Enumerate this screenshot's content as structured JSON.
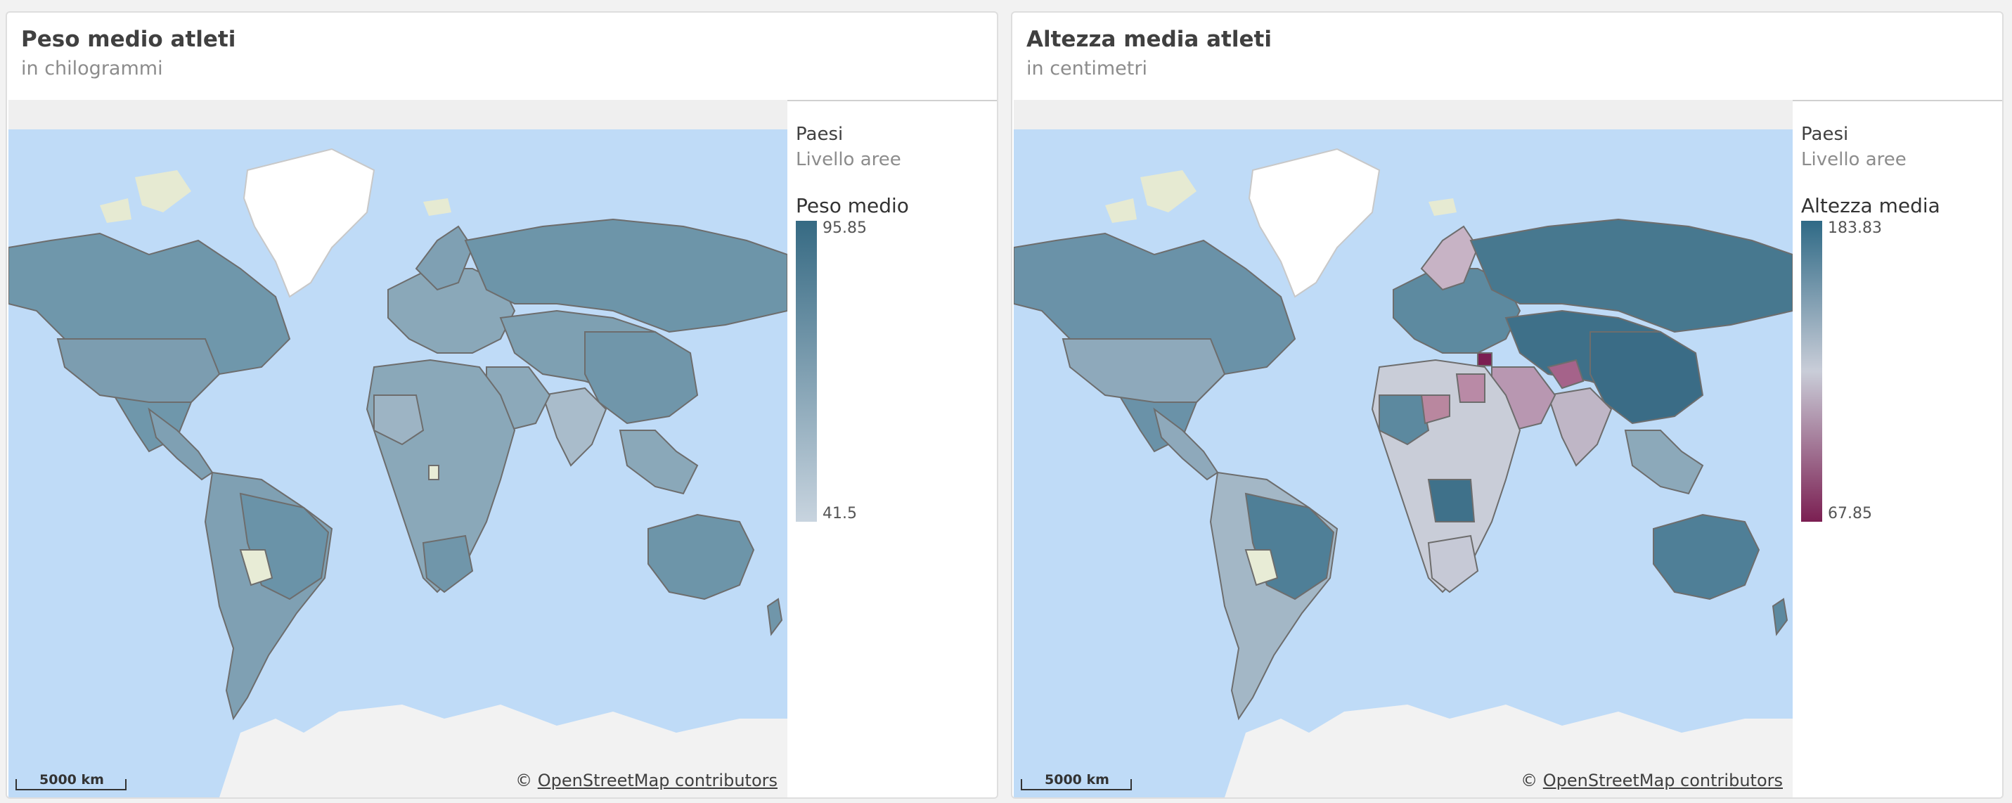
{
  "panels": [
    {
      "title": "Peso medio atleti",
      "subtitle": "in chilogrammi",
      "legend": {
        "dimension_title": "Paesi",
        "dimension_subtitle": "Livello aree",
        "measure_title": "Peso medio",
        "max_label": "95.85",
        "min_label": "41.5",
        "color_scale": [
          "#c8d4df",
          "#366a83"
        ]
      },
      "scale_label": "5000 km",
      "attribution": {
        "prefix": "©",
        "link_text": "OpenStreetMap contributors"
      }
    },
    {
      "title": "Altezza media atleti",
      "subtitle": "in centimetri",
      "legend": {
        "dimension_title": "Paesi",
        "dimension_subtitle": "Livello aree",
        "measure_title": "Altezza media",
        "max_label": "183.83",
        "min_label": "67.85",
        "color_scale": [
          "#7b1f52",
          "#c9cdd8",
          "#2f6a86"
        ]
      },
      "scale_label": "5000 km",
      "attribution": {
        "prefix": "©",
        "link_text": "OpenStreetMap contributors"
      }
    }
  ],
  "colors": {
    "ocean": "#bfdbf7",
    "ice": "#f2f2f2",
    "greenland": "#ffffff",
    "no_data": "#e8ecd6",
    "border": "#6d6d6d"
  }
}
